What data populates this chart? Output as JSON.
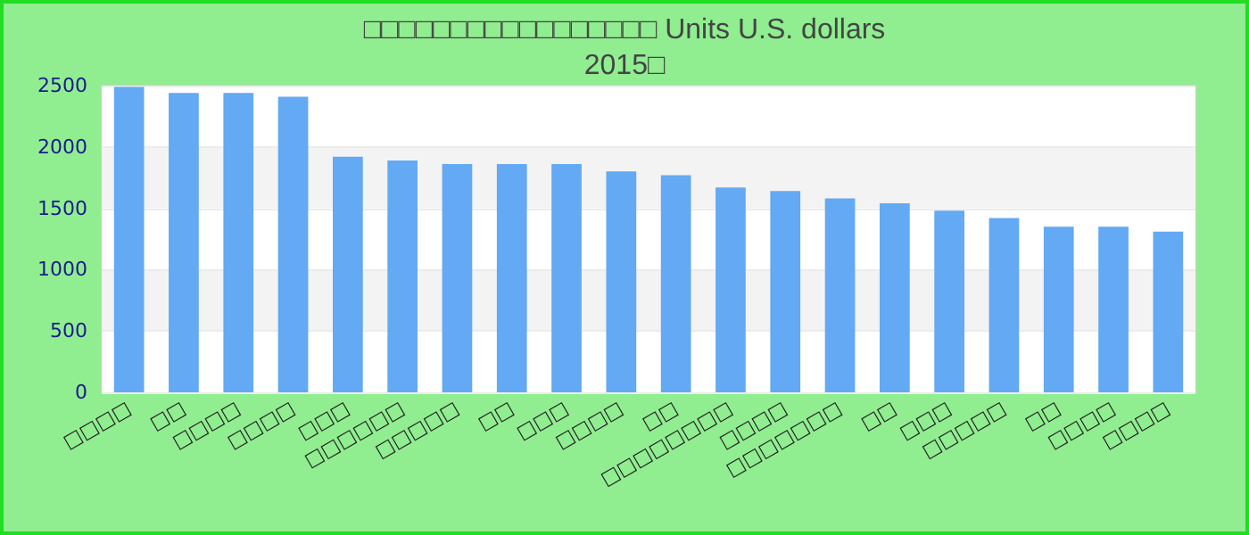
{
  "chart_data": {
    "type": "bar",
    "title": "□□□□□□□□□□□□□□□□□ Units U.S. dollars",
    "subtitle": "2015□",
    "categories": [
      "□□□□",
      "□□",
      "□□□□",
      "□□□□",
      "□□□",
      "□□□□□□",
      "□□□□□",
      "□□",
      "□□□",
      "□□□□",
      "□□",
      "□□□□□□□□",
      "□□□□",
      "□□□□□□□",
      "□□",
      "□□□",
      "□□□□□",
      "□□",
      "□□□□",
      "□□□□"
    ],
    "values": [
      2490,
      2440,
      2440,
      2410,
      1920,
      1890,
      1860,
      1860,
      1860,
      1800,
      1770,
      1670,
      1640,
      1580,
      1540,
      1480,
      1420,
      1350,
      1350,
      1310
    ],
    "color": "#63a9f3",
    "ylim": [
      0,
      2500
    ],
    "yticks": [
      0,
      500,
      1000,
      1500,
      2000,
      2500
    ],
    "grid": "y"
  }
}
